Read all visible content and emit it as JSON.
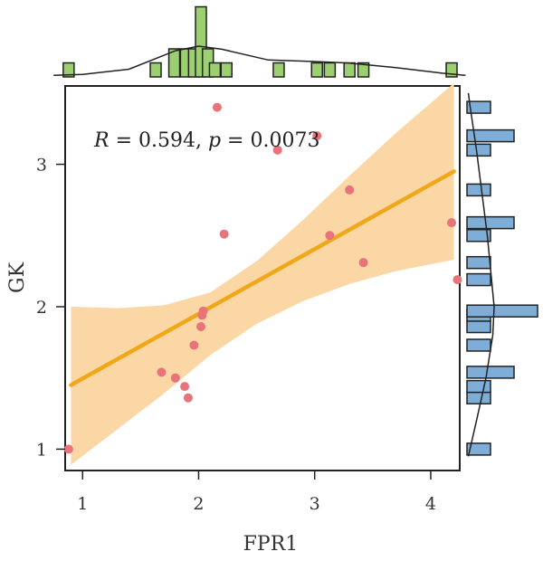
{
  "chart_data": {
    "type": "scatter",
    "xlabel": "FPR1",
    "ylabel": "GK",
    "xlim": [
      0.85,
      4.25
    ],
    "ylim": [
      0.85,
      3.55
    ],
    "xticks": [
      1,
      2,
      3,
      4
    ],
    "yticks": [
      1,
      2,
      3
    ],
    "xtick_labels": [
      "1",
      "2",
      "3",
      "4"
    ],
    "ytick_labels": [
      "1",
      "2",
      "3"
    ],
    "annotation": {
      "r_symbol": "R",
      "r_eq": " = 0.594, ",
      "p_symbol": "p",
      "p_eq": " = 0.0073"
    },
    "points": [
      {
        "x": 0.88,
        "y": 1.0
      },
      {
        "x": 1.68,
        "y": 1.54
      },
      {
        "x": 1.8,
        "y": 1.5
      },
      {
        "x": 1.88,
        "y": 1.44
      },
      {
        "x": 1.91,
        "y": 1.36
      },
      {
        "x": 1.96,
        "y": 1.73
      },
      {
        "x": 2.02,
        "y": 1.86
      },
      {
        "x": 2.03,
        "y": 1.94
      },
      {
        "x": 2.04,
        "y": 1.97
      },
      {
        "x": 2.16,
        "y": 3.4
      },
      {
        "x": 2.22,
        "y": 2.51
      },
      {
        "x": 2.68,
        "y": 3.1
      },
      {
        "x": 3.02,
        "y": 3.2
      },
      {
        "x": 3.13,
        "y": 2.5
      },
      {
        "x": 3.3,
        "y": 2.82
      },
      {
        "x": 3.42,
        "y": 2.31
      },
      {
        "x": 4.18,
        "y": 2.59
      },
      {
        "x": 4.23,
        "y": 2.19
      }
    ],
    "regression": {
      "x": [
        0.9,
        4.2
      ],
      "y": [
        1.45,
        2.95
      ]
    },
    "confidence_band": {
      "x": [
        0.9,
        1.3,
        1.7,
        2.1,
        2.5,
        2.9,
        3.3,
        3.7,
        4.2
      ],
      "upper": [
        2.0,
        1.99,
        2.01,
        2.1,
        2.32,
        2.61,
        2.92,
        3.22,
        3.57
      ],
      "lower": [
        0.89,
        1.14,
        1.39,
        1.66,
        1.88,
        2.04,
        2.16,
        2.25,
        2.33
      ]
    },
    "top_histogram": {
      "bin_centers": [
        0.88,
        1.63,
        1.79,
        1.89,
        1.96,
        2.02,
        2.08,
        2.14,
        2.24,
        2.69,
        3.02,
        3.13,
        3.3,
        3.42,
        4.18
      ],
      "counts": [
        1,
        1,
        2,
        2,
        2,
        5,
        2,
        1,
        1,
        1,
        1,
        1,
        1,
        1,
        1
      ],
      "density_x": [
        0.75,
        1.0,
        1.4,
        1.8,
        2.0,
        2.2,
        2.6,
        3.0,
        3.3,
        3.7,
        4.1,
        4.3
      ],
      "density_y": [
        0.05,
        0.08,
        0.25,
        0.85,
        1.0,
        0.9,
        0.55,
        0.5,
        0.45,
        0.3,
        0.12,
        0.05
      ]
    },
    "right_histogram": {
      "bin_centers": [
        1.0,
        1.36,
        1.44,
        1.54,
        1.73,
        1.86,
        1.94,
        1.97,
        2.19,
        2.31,
        2.5,
        2.59,
        2.82,
        3.1,
        3.2,
        3.4
      ],
      "counts": [
        1,
        1,
        1,
        2,
        1,
        1,
        1,
        3,
        1,
        1,
        1,
        2,
        1,
        1,
        2,
        1
      ],
      "density_y": [
        0.95,
        1.2,
        1.5,
        1.8,
        2.0,
        2.2,
        2.5,
        2.8,
        3.1,
        3.4,
        3.5
      ],
      "density_x": [
        0.05,
        0.35,
        0.7,
        0.95,
        1.0,
        0.9,
        0.75,
        0.55,
        0.35,
        0.12,
        0.05
      ]
    },
    "colors": {
      "points": "#e8737a",
      "regression_line": "#f0a818",
      "confidence_band": "#fcd7a6",
      "top_bars": "#9ccf6f",
      "right_bars": "#7eadd8",
      "bar_stroke": "#222222",
      "frame": "#222222"
    }
  }
}
